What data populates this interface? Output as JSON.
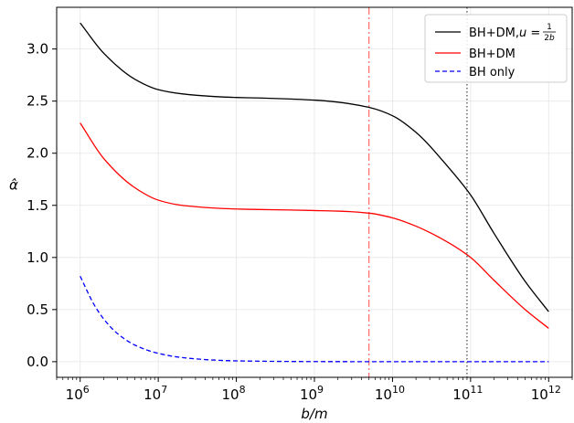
{
  "chart_data": {
    "type": "line",
    "xscale": "log",
    "xlim": [
      500000,
      2000000000000
    ],
    "ylim": [
      -0.15,
      3.4
    ],
    "xlabel": "b/m",
    "ylabel": "α̂",
    "grid": true,
    "legend_position": "top-right",
    "x_ticks": [
      {
        "value": 1000000,
        "label": "6"
      },
      {
        "value": 10000000,
        "label": "7"
      },
      {
        "value": 100000000,
        "label": "8"
      },
      {
        "value": 1000000000,
        "label": "9"
      },
      {
        "value": 10000000000,
        "label": "10"
      },
      {
        "value": 100000000000,
        "label": "11"
      },
      {
        "value": 1000000000000,
        "label": "12"
      }
    ],
    "x_tick_base": "10",
    "y_ticks": [
      {
        "value": 0.0,
        "label": "0.0"
      },
      {
        "value": 0.5,
        "label": "0.5"
      },
      {
        "value": 1.0,
        "label": "1.0"
      },
      {
        "value": 1.5,
        "label": "1.5"
      },
      {
        "value": 2.0,
        "label": "2.0"
      },
      {
        "value": 2.5,
        "label": "2.5"
      },
      {
        "value": 3.0,
        "label": "3.0"
      }
    ],
    "vertical_lines": [
      {
        "x": 5000000000,
        "color": "#ff5a5a",
        "style": "dashdot"
      },
      {
        "x": 90000000000,
        "color": "#333333",
        "style": "dotted"
      }
    ],
    "series": [
      {
        "name": "BH+DM,",
        "name_math": "u = 1/2b",
        "color": "#000000",
        "style": "solid",
        "x": [
          1000000,
          2000000,
          5000000,
          10000000,
          20000000,
          50000000,
          100000000,
          200000000,
          500000000,
          1000000000,
          2000000000,
          5000000000,
          10000000000,
          20000000000,
          50000000000,
          100000000000,
          200000000000,
          500000000000,
          1000000000000
        ],
        "y": [
          3.25,
          2.96,
          2.71,
          2.61,
          2.57,
          2.545,
          2.535,
          2.53,
          2.52,
          2.51,
          2.49,
          2.44,
          2.36,
          2.2,
          1.88,
          1.6,
          1.23,
          0.77,
          0.48
        ]
      },
      {
        "name": "BH+DM",
        "color": "#ff0000",
        "style": "solid",
        "x": [
          1000000,
          2000000,
          5000000,
          10000000,
          20000000,
          50000000,
          100000000,
          200000000,
          500000000,
          1000000000,
          2000000000,
          5000000000,
          10000000000,
          20000000000,
          50000000000,
          100000000000,
          200000000000,
          500000000000,
          1000000000000
        ],
        "y": [
          2.29,
          1.95,
          1.67,
          1.55,
          1.5,
          1.475,
          1.465,
          1.46,
          1.455,
          1.45,
          1.445,
          1.425,
          1.38,
          1.3,
          1.15,
          1.0,
          0.78,
          0.5,
          0.32
        ]
      },
      {
        "name": "BH only",
        "color": "#0000ff",
        "style": "dashed",
        "x": [
          1000000,
          1500000,
          2000000,
          3000000,
          5000000,
          10000000,
          20000000,
          50000000,
          100000000,
          1000000000,
          10000000000,
          100000000000,
          1000000000000
        ],
        "y": [
          0.82,
          0.55,
          0.41,
          0.27,
          0.16,
          0.08,
          0.04,
          0.016,
          0.008,
          0.001,
          0.0001,
          0.0,
          0.0
        ]
      }
    ]
  }
}
